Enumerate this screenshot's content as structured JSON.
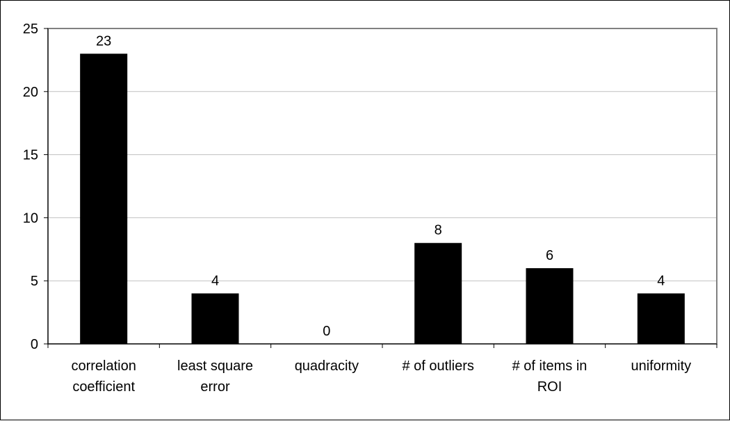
{
  "chart_data": {
    "type": "bar",
    "title": "",
    "xlabel": "",
    "ylabel": "",
    "categories": [
      [
        "correlation",
        "coefficient"
      ],
      [
        "least square",
        "error"
      ],
      [
        "quadracity"
      ],
      [
        "# of outliers"
      ],
      [
        "# of items in",
        "ROI"
      ],
      [
        "uniformity"
      ]
    ],
    "values": [
      23,
      4,
      0,
      8,
      6,
      4
    ],
    "data_labels": [
      "23",
      "4",
      "0",
      "8",
      "6",
      "4"
    ],
    "yticks": [
      "0",
      "5",
      "10",
      "15",
      "20",
      "25"
    ],
    "ylim": [
      0,
      25
    ],
    "grid": true,
    "legend": "none",
    "colors": {
      "bar": "#000000",
      "grid": "#c0c0c0",
      "plot_border": "#808080",
      "axis": "#000000"
    }
  }
}
